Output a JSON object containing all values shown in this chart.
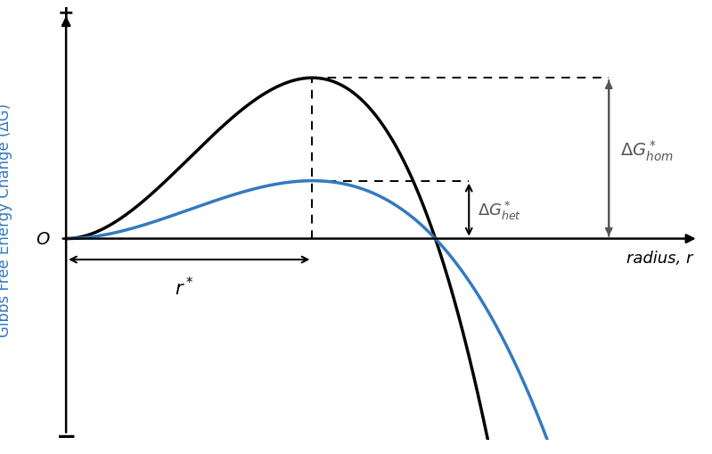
{
  "ylabel": "Gibbs Free Energy Change (ΔG)",
  "xlabel": "radius, r",
  "hom_color": "#000000",
  "het_color": "#3579c0",
  "annotation_color": "#555555",
  "ylabel_color": "#3579c0",
  "r_star": 0.44,
  "G_hom_max": 1.0,
  "G_het_max": 0.36,
  "figsize": [
    7.99,
    5.1
  ],
  "dpi": 100
}
